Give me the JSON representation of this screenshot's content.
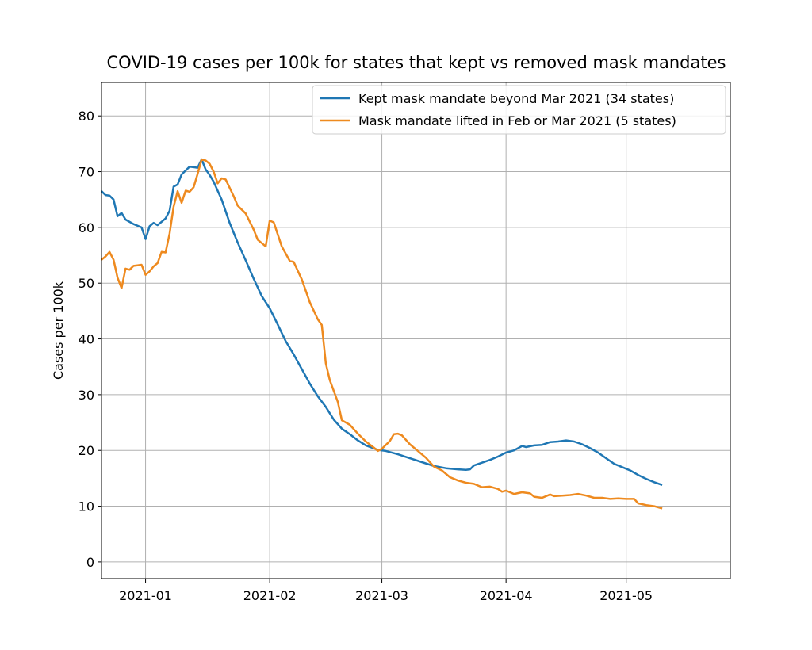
{
  "chart_data": {
    "type": "line",
    "title": "COVID-19 cases per 100k for states that kept vs removed mask mandates",
    "xlabel": "",
    "ylabel": "Cases per 100k",
    "x_type": "date",
    "xlim": [
      "2020-12-21",
      "2021-05-27"
    ],
    "ylim": [
      -3,
      86
    ],
    "yticks": [
      0,
      10,
      20,
      30,
      40,
      50,
      60,
      70,
      80
    ],
    "xticks": [
      "2021-01-01",
      "2021-02-01",
      "2021-03-01",
      "2021-04-01",
      "2021-05-01"
    ],
    "xtick_labels": [
      "2021-01",
      "2021-02",
      "2021-03",
      "2021-04",
      "2021-05"
    ],
    "grid": true,
    "legend": "top-right",
    "series": [
      {
        "name": "Kept mask mandate beyond Mar 2021 (34 states)",
        "color": "#1f77b4",
        "points": [
          [
            "2020-12-21",
            66.5
          ],
          [
            "2020-12-22",
            65.8
          ],
          [
            "2020-12-23",
            65.7
          ],
          [
            "2020-12-24",
            65.0
          ],
          [
            "2020-12-25",
            62.0
          ],
          [
            "2020-12-26",
            62.6
          ],
          [
            "2020-12-27",
            61.4
          ],
          [
            "2020-12-29",
            60.6
          ],
          [
            "2020-12-31",
            60.0
          ],
          [
            "2021-01-01",
            57.9
          ],
          [
            "2021-01-02",
            60.2
          ],
          [
            "2021-01-03",
            60.8
          ],
          [
            "2021-01-04",
            60.4
          ],
          [
            "2021-01-05",
            61.0
          ],
          [
            "2021-01-06",
            61.6
          ],
          [
            "2021-01-07",
            63.0
          ],
          [
            "2021-01-08",
            67.3
          ],
          [
            "2021-01-09",
            67.7
          ],
          [
            "2021-01-10",
            69.5
          ],
          [
            "2021-01-11",
            70.2
          ],
          [
            "2021-01-12",
            70.9
          ],
          [
            "2021-01-13",
            70.8
          ],
          [
            "2021-01-14",
            70.7
          ],
          [
            "2021-01-15",
            72.2
          ],
          [
            "2021-01-16",
            70.4
          ],
          [
            "2021-01-17",
            69.4
          ],
          [
            "2021-01-18",
            68.2
          ],
          [
            "2021-01-20",
            65.0
          ],
          [
            "2021-01-22",
            60.8
          ],
          [
            "2021-01-24",
            57.3
          ],
          [
            "2021-01-26",
            54.1
          ],
          [
            "2021-01-28",
            50.8
          ],
          [
            "2021-01-30",
            47.7
          ],
          [
            "2021-02-01",
            45.5
          ],
          [
            "2021-02-03",
            42.6
          ],
          [
            "2021-02-05",
            39.6
          ],
          [
            "2021-02-07",
            37.2
          ],
          [
            "2021-02-09",
            34.6
          ],
          [
            "2021-02-11",
            32.0
          ],
          [
            "2021-02-13",
            29.7
          ],
          [
            "2021-02-15",
            27.8
          ],
          [
            "2021-02-17",
            25.5
          ],
          [
            "2021-02-19",
            23.9
          ],
          [
            "2021-02-21",
            22.9
          ],
          [
            "2021-02-23",
            21.8
          ],
          [
            "2021-02-25",
            20.9
          ],
          [
            "2021-02-28",
            20.1
          ],
          [
            "2021-03-02",
            19.9
          ],
          [
            "2021-03-05",
            19.3
          ],
          [
            "2021-03-08",
            18.6
          ],
          [
            "2021-03-11",
            17.9
          ],
          [
            "2021-03-14",
            17.2
          ],
          [
            "2021-03-17",
            16.8
          ],
          [
            "2021-03-20",
            16.6
          ],
          [
            "2021-03-22",
            16.5
          ],
          [
            "2021-03-23",
            16.6
          ],
          [
            "2021-03-24",
            17.3
          ],
          [
            "2021-03-26",
            17.8
          ],
          [
            "2021-03-28",
            18.3
          ],
          [
            "2021-03-30",
            18.9
          ],
          [
            "2021-04-01",
            19.6
          ],
          [
            "2021-04-03",
            20.0
          ],
          [
            "2021-04-05",
            20.8
          ],
          [
            "2021-04-06",
            20.6
          ],
          [
            "2021-04-08",
            20.9
          ],
          [
            "2021-04-10",
            21.0
          ],
          [
            "2021-04-12",
            21.5
          ],
          [
            "2021-04-14",
            21.6
          ],
          [
            "2021-04-16",
            21.8
          ],
          [
            "2021-04-18",
            21.6
          ],
          [
            "2021-04-20",
            21.1
          ],
          [
            "2021-04-22",
            20.4
          ],
          [
            "2021-04-24",
            19.6
          ],
          [
            "2021-04-26",
            18.6
          ],
          [
            "2021-04-28",
            17.6
          ],
          [
            "2021-04-30",
            17.0
          ],
          [
            "2021-05-02",
            16.4
          ],
          [
            "2021-05-04",
            15.6
          ],
          [
            "2021-05-06",
            14.9
          ],
          [
            "2021-05-08",
            14.3
          ],
          [
            "2021-05-10",
            13.8
          ]
        ]
      },
      {
        "name": "Mask mandate lifted in Feb or Mar 2021 (5 states)",
        "color": "#ee8a1f",
        "points": [
          [
            "2020-12-21",
            54.2
          ],
          [
            "2020-12-22",
            54.8
          ],
          [
            "2020-12-23",
            55.6
          ],
          [
            "2020-12-24",
            54.2
          ],
          [
            "2020-12-25",
            51.0
          ],
          [
            "2020-12-26",
            49.1
          ],
          [
            "2020-12-27",
            52.6
          ],
          [
            "2020-12-28",
            52.4
          ],
          [
            "2020-12-29",
            53.1
          ],
          [
            "2020-12-30",
            53.2
          ],
          [
            "2020-12-31",
            53.3
          ],
          [
            "2021-01-01",
            51.5
          ],
          [
            "2021-01-02",
            52.1
          ],
          [
            "2021-01-03",
            53.0
          ],
          [
            "2021-01-04",
            53.6
          ],
          [
            "2021-01-05",
            55.6
          ],
          [
            "2021-01-06",
            55.5
          ],
          [
            "2021-01-07",
            58.9
          ],
          [
            "2021-01-08",
            63.7
          ],
          [
            "2021-01-09",
            66.5
          ],
          [
            "2021-01-10",
            64.4
          ],
          [
            "2021-01-11",
            66.6
          ],
          [
            "2021-01-12",
            66.4
          ],
          [
            "2021-01-13",
            67.2
          ],
          [
            "2021-01-14",
            69.6
          ],
          [
            "2021-01-15",
            72.2
          ],
          [
            "2021-01-16",
            72.0
          ],
          [
            "2021-01-17",
            71.4
          ],
          [
            "2021-01-18",
            70.0
          ],
          [
            "2021-01-19",
            67.9
          ],
          [
            "2021-01-20",
            68.8
          ],
          [
            "2021-01-21",
            68.6
          ],
          [
            "2021-01-23",
            65.6
          ],
          [
            "2021-01-24",
            63.9
          ],
          [
            "2021-01-26",
            62.5
          ],
          [
            "2021-01-28",
            59.6
          ],
          [
            "2021-01-29",
            57.8
          ],
          [
            "2021-01-31",
            56.6
          ],
          [
            "2021-02-01",
            61.2
          ],
          [
            "2021-02-02",
            60.9
          ],
          [
            "2021-02-04",
            56.6
          ],
          [
            "2021-02-06",
            54.0
          ],
          [
            "2021-02-07",
            53.8
          ],
          [
            "2021-02-09",
            50.7
          ],
          [
            "2021-02-11",
            46.6
          ],
          [
            "2021-02-13",
            43.5
          ],
          [
            "2021-02-14",
            42.5
          ],
          [
            "2021-02-15",
            35.6
          ],
          [
            "2021-02-16",
            32.6
          ],
          [
            "2021-02-18",
            28.7
          ],
          [
            "2021-02-19",
            25.4
          ],
          [
            "2021-02-21",
            24.6
          ],
          [
            "2021-02-23",
            23.0
          ],
          [
            "2021-02-25",
            21.6
          ],
          [
            "2021-02-27",
            20.5
          ],
          [
            "2021-02-28",
            19.9
          ],
          [
            "2021-03-01",
            20.3
          ],
          [
            "2021-03-03",
            21.7
          ],
          [
            "2021-03-04",
            22.9
          ],
          [
            "2021-03-05",
            23.0
          ],
          [
            "2021-03-06",
            22.7
          ],
          [
            "2021-03-08",
            21.1
          ],
          [
            "2021-03-10",
            19.9
          ],
          [
            "2021-03-12",
            18.7
          ],
          [
            "2021-03-14",
            17.1
          ],
          [
            "2021-03-16",
            16.4
          ],
          [
            "2021-03-18",
            15.2
          ],
          [
            "2021-03-20",
            14.6
          ],
          [
            "2021-03-22",
            14.2
          ],
          [
            "2021-03-24",
            14.0
          ],
          [
            "2021-03-26",
            13.4
          ],
          [
            "2021-03-28",
            13.5
          ],
          [
            "2021-03-30",
            13.1
          ],
          [
            "2021-03-31",
            12.6
          ],
          [
            "2021-04-01",
            12.8
          ],
          [
            "2021-04-03",
            12.2
          ],
          [
            "2021-04-05",
            12.5
          ],
          [
            "2021-04-07",
            12.3
          ],
          [
            "2021-04-08",
            11.7
          ],
          [
            "2021-04-10",
            11.5
          ],
          [
            "2021-04-12",
            12.1
          ],
          [
            "2021-04-13",
            11.8
          ],
          [
            "2021-04-15",
            11.9
          ],
          [
            "2021-04-17",
            12.0
          ],
          [
            "2021-04-19",
            12.2
          ],
          [
            "2021-04-21",
            11.9
          ],
          [
            "2021-04-23",
            11.5
          ],
          [
            "2021-04-25",
            11.5
          ],
          [
            "2021-04-27",
            11.3
          ],
          [
            "2021-04-29",
            11.4
          ],
          [
            "2021-05-01",
            11.3
          ],
          [
            "2021-05-03",
            11.3
          ],
          [
            "2021-05-04",
            10.5
          ],
          [
            "2021-05-06",
            10.2
          ],
          [
            "2021-05-08",
            10.0
          ],
          [
            "2021-05-10",
            9.6
          ]
        ]
      }
    ]
  }
}
